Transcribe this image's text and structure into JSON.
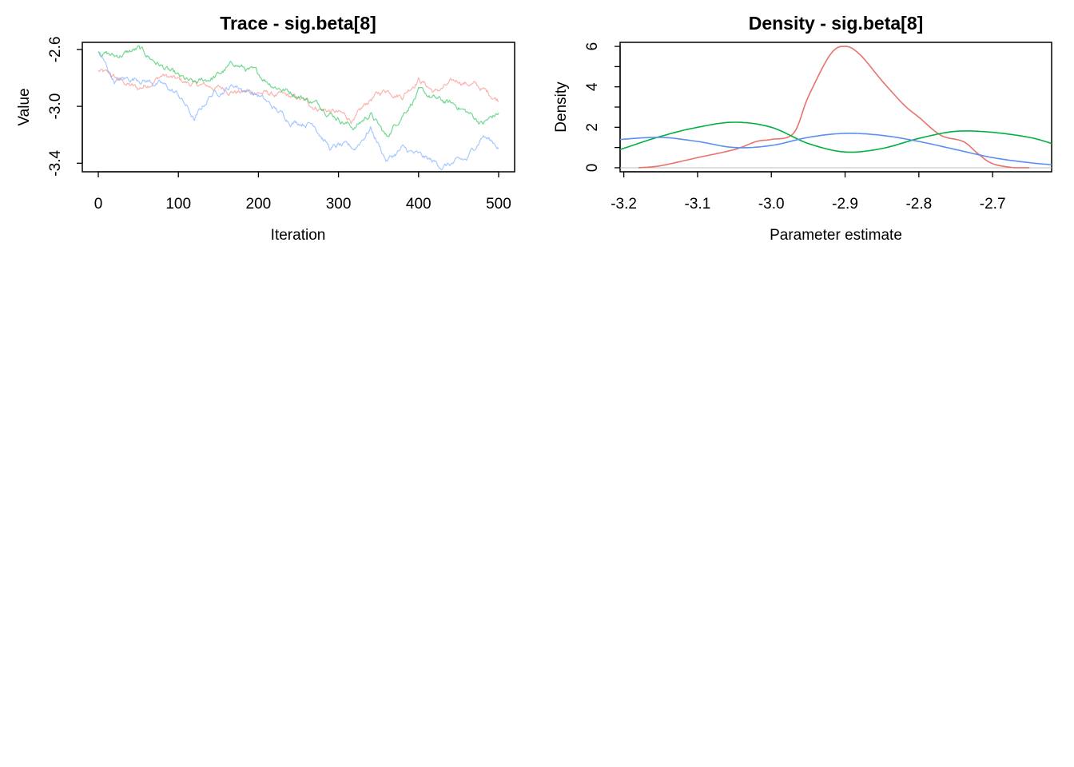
{
  "chart_data": [
    {
      "type": "line",
      "title": "Trace - sig.beta[8]",
      "xlabel": "Iteration",
      "ylabel": "Value",
      "xlim": [
        -20,
        520
      ],
      "ylim": [
        -3.46,
        -2.55
      ],
      "xticks": [
        0,
        100,
        200,
        300,
        400,
        500
      ],
      "yticks": [
        -3.4,
        -3.0,
        -2.6
      ],
      "xtick_labels": [
        "0",
        "100",
        "200",
        "300",
        "400",
        "500"
      ],
      "ytick_labels": [
        "-3.4",
        "-3.0",
        "-2.6"
      ],
      "grid": false,
      "series": [
        {
          "color": "#F8766D",
          "x": [
            0,
            20,
            50,
            80,
            100,
            120,
            150,
            180,
            200,
            220,
            250,
            270,
            300,
            320,
            340,
            360,
            380,
            400,
            420,
            450,
            470,
            500
          ],
          "y": [
            -2.75,
            -2.8,
            -2.88,
            -2.78,
            -2.82,
            -2.85,
            -2.87,
            -2.9,
            -2.9,
            -2.92,
            -2.95,
            -3.0,
            -3.05,
            -3.1,
            -2.95,
            -2.88,
            -2.92,
            -2.8,
            -2.9,
            -2.82,
            -2.85,
            -2.95
          ]
        },
        {
          "color": "#00BA38",
          "x": [
            0,
            20,
            50,
            80,
            100,
            120,
            150,
            170,
            200,
            220,
            250,
            280,
            300,
            320,
            340,
            360,
            380,
            400,
            420,
            450,
            480,
            500
          ],
          "y": [
            -2.6,
            -2.65,
            -2.6,
            -2.72,
            -2.8,
            -2.85,
            -2.78,
            -2.7,
            -2.78,
            -2.85,
            -2.92,
            -3.0,
            -3.08,
            -3.15,
            -3.05,
            -3.22,
            -3.05,
            -2.9,
            -2.95,
            -3.0,
            -3.12,
            -3.05
          ]
        },
        {
          "color": "#619CFF",
          "x": [
            0,
            20,
            50,
            80,
            100,
            110,
            120,
            140,
            170,
            200,
            220,
            240,
            270,
            290,
            300,
            320,
            340,
            360,
            380,
            400,
            430,
            460,
            480,
            500
          ],
          "y": [
            -2.62,
            -2.82,
            -2.8,
            -2.85,
            -2.92,
            -3.0,
            -3.1,
            -2.92,
            -2.85,
            -2.92,
            -3.02,
            -3.1,
            -3.12,
            -3.3,
            -3.28,
            -3.3,
            -3.15,
            -3.38,
            -3.3,
            -3.35,
            -3.42,
            -3.38,
            -3.2,
            -3.28
          ]
        }
      ]
    },
    {
      "type": "line",
      "title": "Density - sig.beta[8]",
      "xlabel": "Parameter estimate",
      "ylabel": "Density",
      "xlim": [
        -3.205,
        -2.62
      ],
      "ylim": [
        -0.2,
        6.2
      ],
      "xticks": [
        -3.2,
        -3.1,
        -3.0,
        -2.9,
        -2.8,
        -2.7
      ],
      "yticks": [
        0,
        2,
        4,
        6
      ],
      "xtick_labels": [
        "-3.2",
        "-3.1",
        "-3.0",
        "-2.9",
        "-2.8",
        "-2.7"
      ],
      "ytick_labels": [
        "0",
        "2",
        "4",
        "6"
      ],
      "grid": false,
      "series": [
        {
          "color": "#E8736C",
          "x": [
            -3.18,
            -3.15,
            -3.1,
            -3.05,
            -3.02,
            -3.0,
            -2.97,
            -2.95,
            -2.92,
            -2.9,
            -2.88,
            -2.85,
            -2.82,
            -2.8,
            -2.77,
            -2.74,
            -2.72,
            -2.7,
            -2.67,
            -2.65
          ],
          "y": [
            0.0,
            0.1,
            0.5,
            0.9,
            1.3,
            1.4,
            1.7,
            3.5,
            5.6,
            6.0,
            5.6,
            4.3,
            3.1,
            2.5,
            1.6,
            1.3,
            0.7,
            0.2,
            0.0,
            0.0
          ]
        },
        {
          "color": "#00B140",
          "x": [
            -3.205,
            -3.15,
            -3.1,
            -3.05,
            -3.0,
            -2.95,
            -2.9,
            -2.85,
            -2.8,
            -2.75,
            -2.7,
            -2.65,
            -2.62
          ],
          "y": [
            0.9,
            1.55,
            2.0,
            2.25,
            2.0,
            1.2,
            0.78,
            0.95,
            1.45,
            1.8,
            1.75,
            1.5,
            1.2
          ]
        },
        {
          "color": "#5B8FF0",
          "x": [
            -3.205,
            -3.15,
            -3.1,
            -3.05,
            -3.0,
            -2.95,
            -2.9,
            -2.85,
            -2.8,
            -2.75,
            -2.7,
            -2.65,
            -2.62
          ],
          "y": [
            1.4,
            1.5,
            1.3,
            1.0,
            1.1,
            1.5,
            1.7,
            1.6,
            1.3,
            0.9,
            0.5,
            0.25,
            0.15
          ]
        }
      ]
    }
  ]
}
